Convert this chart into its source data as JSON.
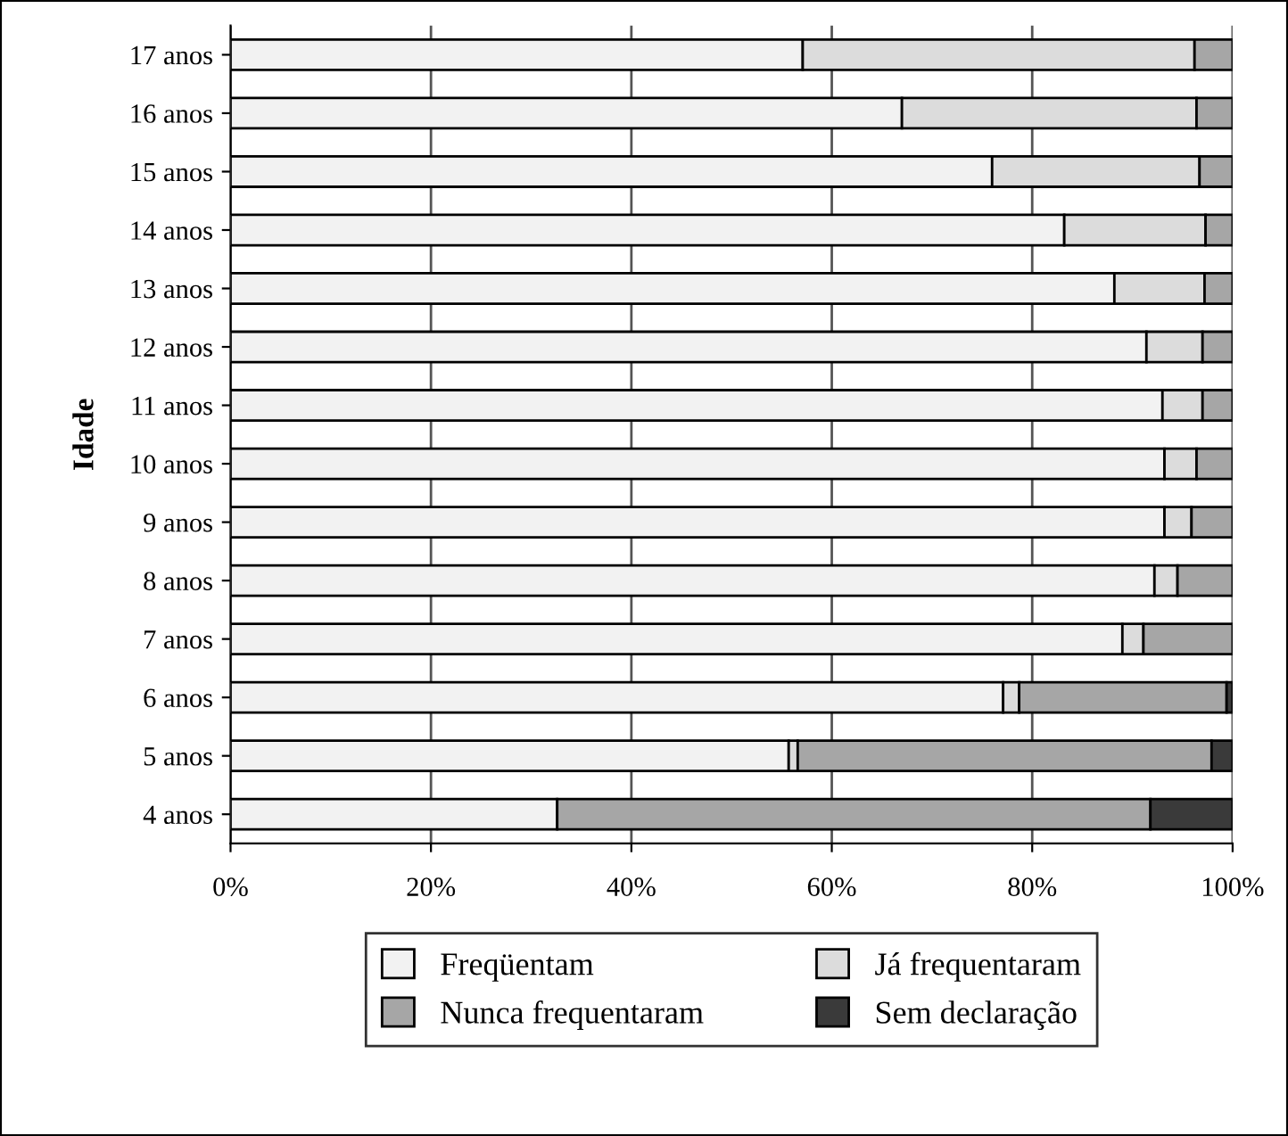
{
  "chart_data": {
    "type": "bar",
    "orientation": "horizontal",
    "stacked": true,
    "ylabel": "Idade",
    "categories": [
      "17 anos",
      "16 anos",
      "15 anos",
      "14 anos",
      "13 anos",
      "12 anos",
      "11 anos",
      "10 anos",
      "9 anos",
      "8 anos",
      "7 anos",
      "6 anos",
      "5 anos",
      "4 anos"
    ],
    "series": [
      {
        "name": "Freqüentam",
        "color": "#f2f2f2",
        "values": [
          57.1,
          67.0,
          76.0,
          83.2,
          88.2,
          91.4,
          93.0,
          93.2,
          93.2,
          92.2,
          89.0,
          77.1,
          55.7,
          32.6
        ]
      },
      {
        "name": "Já frequentaram",
        "color": "#dcdcdc",
        "values": [
          39.1,
          29.4,
          20.7,
          14.1,
          9.0,
          5.6,
          4.0,
          3.2,
          2.7,
          2.3,
          2.1,
          1.6,
          0.9,
          0
        ]
      },
      {
        "name": "Nunca frequentaram",
        "color": "#a6a6a6",
        "values": [
          3.8,
          3.6,
          3.3,
          2.7,
          2.8,
          3.0,
          3.0,
          3.6,
          4.1,
          5.5,
          8.9,
          20.7,
          41.3,
          59.2
        ]
      },
      {
        "name": "Sem declaração",
        "color": "#3a3a3a",
        "values": [
          0,
          0,
          0,
          0,
          0,
          0,
          0,
          0,
          0,
          0,
          0,
          0.6,
          2.1,
          8.2
        ]
      }
    ],
    "xlim": [
      0,
      100
    ],
    "xticks": [
      {
        "value": 0,
        "label": "0%"
      },
      {
        "value": 20,
        "label": "20%"
      },
      {
        "value": 40,
        "label": "40%"
      },
      {
        "value": 60,
        "label": "60%"
      },
      {
        "value": 80,
        "label": "80%"
      },
      {
        "value": 100,
        "label": "100%"
      }
    ],
    "grid": "x",
    "legend": "bottom"
  }
}
